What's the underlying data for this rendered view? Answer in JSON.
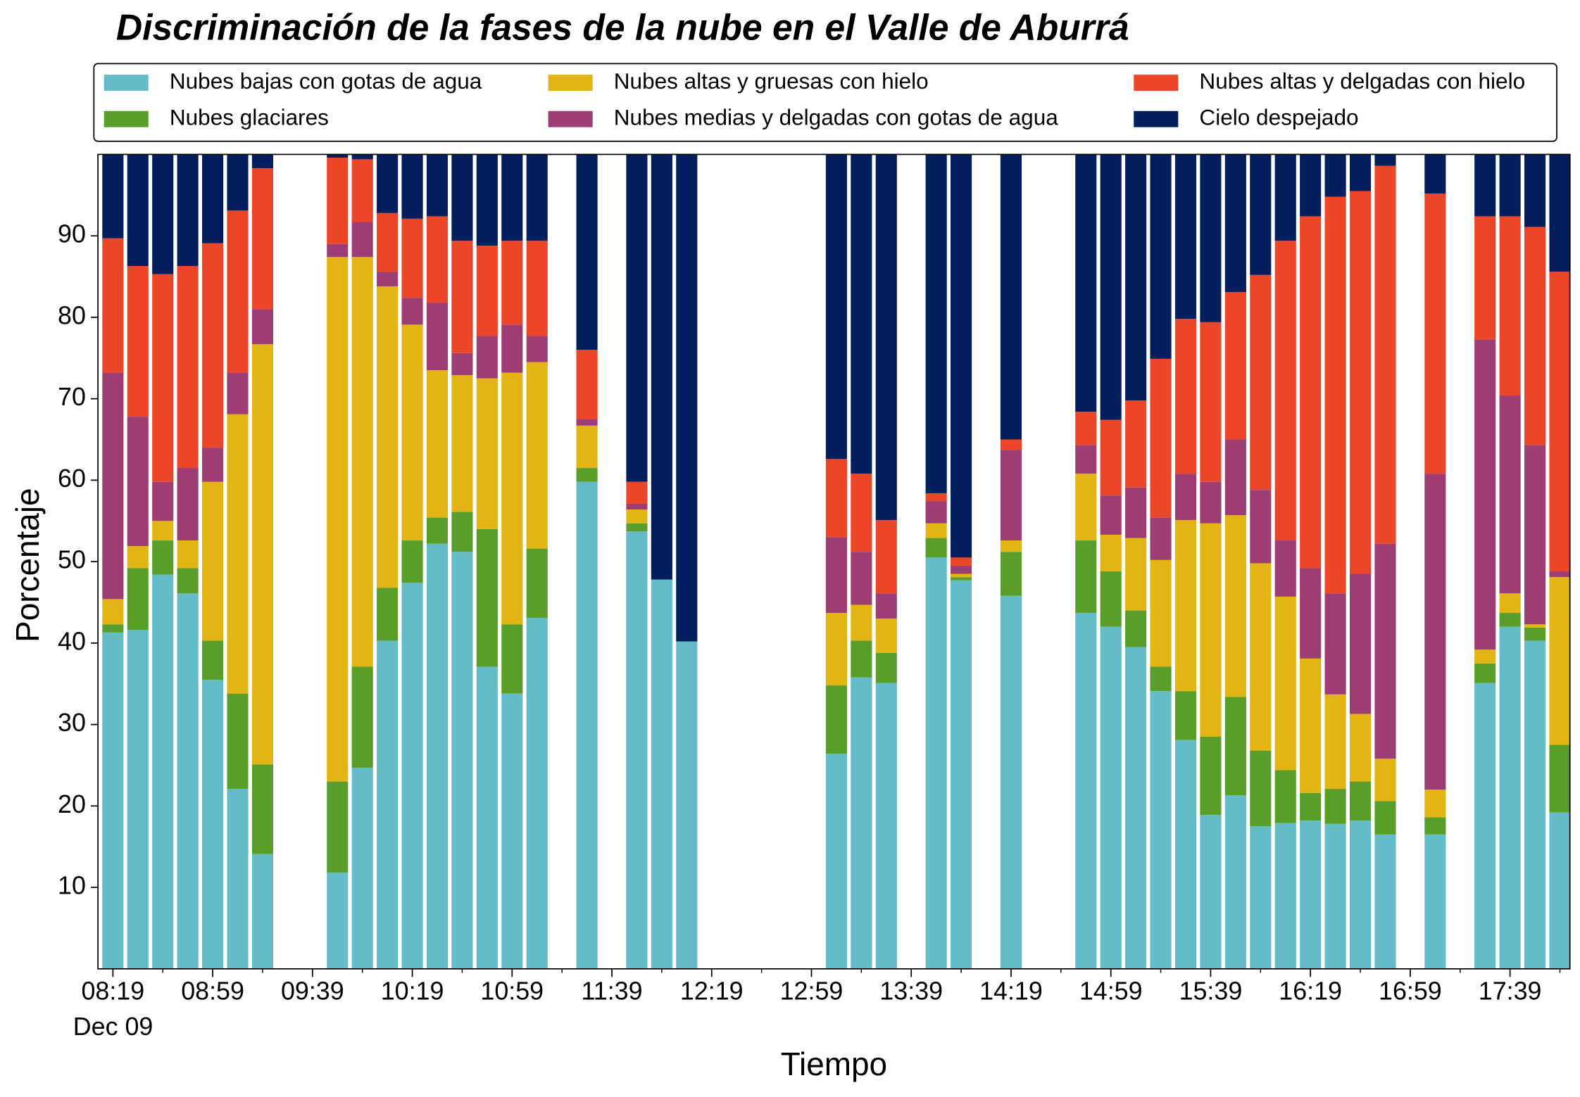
{
  "chart_data": {
    "type": "stacked_bar",
    "title": "Discriminación de la fases de la nube en el Valle de Aburrá",
    "xlabel": "Tiempo",
    "ylabel": "Porcentaje",
    "x_sublabel": "Dec 09",
    "x": [
      "08:19",
      "08:29",
      "08:39",
      "08:49",
      "08:59",
      "09:09",
      "09:19",
      "09:49",
      "09:59",
      "10:09",
      "10:19",
      "10:29",
      "10:39",
      "10:49",
      "10:59",
      "11:09",
      "11:29",
      "11:49",
      "11:59",
      "12:09",
      "13:09",
      "13:19",
      "13:29",
      "13:49",
      "13:59",
      "14:19",
      "14:49",
      "14:59",
      "15:09",
      "15:19",
      "15:29",
      "15:39",
      "15:49",
      "15:59",
      "16:09",
      "16:19",
      "16:29",
      "16:39",
      "16:49",
      "17:09",
      "17:29",
      "17:39",
      "17:49",
      "17:59"
    ],
    "xlim": [
      "08:13",
      "18:03"
    ],
    "xticks": [
      "08:19",
      "08:59",
      "09:39",
      "10:19",
      "10:59",
      "11:39",
      "12:19",
      "12:59",
      "13:39",
      "14:19",
      "14:59",
      "15:39",
      "16:19",
      "16:59",
      "17:39"
    ],
    "xticks_minor": [
      "08:39",
      "09:19",
      "09:59",
      "10:39",
      "11:19",
      "11:59",
      "12:39",
      "13:19",
      "13:59",
      "14:39",
      "15:19",
      "15:59",
      "16:39",
      "17:19",
      "17:59"
    ],
    "ylim": [
      0,
      100
    ],
    "yticks": [
      10,
      20,
      30,
      40,
      50,
      60,
      70,
      80,
      90
    ],
    "legend": "top",
    "series": [
      {
        "name": "Nubes bajas con gotas de agua",
        "color": "#65bcc9",
        "values": [
          41.3,
          41.6,
          48.4,
          46.1,
          35.5,
          22.1,
          14.1,
          11.8,
          24.7,
          40.3,
          47.4,
          52.2,
          51.2,
          37.1,
          33.8,
          43.1,
          59.8,
          53.7,
          47.8,
          40.2,
          26.4,
          35.8,
          35.1,
          50.5,
          47.7,
          45.8,
          43.7,
          42.0,
          39.5,
          34.1,
          28.1,
          18.9,
          21.3,
          17.5,
          17.9,
          18.2,
          17.8,
          18.2,
          16.5,
          16.5,
          35.1,
          42.0,
          40.3,
          19.2
        ]
      },
      {
        "name": "Nubes glaciares",
        "color": "#5a9e2a",
        "values": [
          1.0,
          7.6,
          4.2,
          3.1,
          4.8,
          11.7,
          11.0,
          11.2,
          12.4,
          6.5,
          5.2,
          3.2,
          4.9,
          16.9,
          8.5,
          8.5,
          1.7,
          1.0,
          0,
          0,
          8.4,
          4.5,
          3.7,
          2.4,
          0.4,
          5.4,
          8.9,
          6.8,
          4.5,
          3.0,
          6.0,
          9.6,
          12.1,
          9.3,
          6.5,
          3.4,
          4.3,
          4.8,
          4.1,
          2.1,
          2.4,
          1.7,
          1.6,
          8.3
        ]
      },
      {
        "name": "Nubes altas y gruesas con hielo",
        "color": "#e2b514",
        "values": [
          3.1,
          2.7,
          2.4,
          3.4,
          19.5,
          34.3,
          51.6,
          64.4,
          50.3,
          37.0,
          26.5,
          18.1,
          16.8,
          18.5,
          30.9,
          22.9,
          5.2,
          1.7,
          0,
          0,
          8.9,
          4.4,
          4.2,
          1.8,
          0.4,
          1.4,
          8.2,
          4.5,
          8.9,
          13.1,
          21.0,
          26.2,
          22.3,
          23.0,
          21.3,
          16.5,
          11.6,
          8.3,
          5.2,
          3.4,
          1.7,
          2.4,
          0.4,
          20.6
        ]
      },
      {
        "name": "Nubes medias y delgadas con gotas de agua",
        "color": "#9d3d73",
        "values": [
          27.8,
          15.9,
          4.8,
          8.9,
          4.2,
          5.1,
          4.3,
          1.6,
          4.3,
          1.8,
          3.3,
          8.3,
          2.7,
          5.2,
          5.9,
          3.2,
          0.8,
          0.7,
          0,
          0,
          9.3,
          6.5,
          3.1,
          2.7,
          1.0,
          11.1,
          3.5,
          4.8,
          6.2,
          5.2,
          5.7,
          5.1,
          9.3,
          9.0,
          6.9,
          11.1,
          12.4,
          17.2,
          26.4,
          38.8,
          38.1,
          24.3,
          22.0,
          0.7
        ]
      },
      {
        "name": "Nubes altas y delgadas con hielo",
        "color": "#ec4628",
        "values": [
          16.5,
          18.5,
          25.5,
          24.8,
          25.1,
          19.9,
          17.3,
          10.6,
          7.7,
          7.2,
          9.7,
          10.6,
          13.8,
          11.1,
          10.3,
          11.7,
          8.5,
          2.7,
          0,
          0,
          9.6,
          9.6,
          9.0,
          1.0,
          1.0,
          1.3,
          4.1,
          9.3,
          10.7,
          19.5,
          19.0,
          19.6,
          18.1,
          26.4,
          36.8,
          43.2,
          48.7,
          47.0,
          46.4,
          34.4,
          15.1,
          22.0,
          26.8,
          36.8
        ]
      },
      {
        "name": "Cielo despejado",
        "color": "#031e5c",
        "values": [
          10.3,
          13.7,
          14.7,
          13.7,
          10.9,
          6.9,
          1.7,
          0.4,
          0.6,
          7.2,
          7.9,
          7.6,
          10.6,
          11.2,
          10.6,
          10.6,
          24.0,
          40.2,
          52.2,
          59.8,
          37.4,
          39.2,
          44.9,
          41.6,
          49.5,
          35.0,
          31.6,
          32.6,
          30.2,
          25.1,
          20.2,
          20.6,
          16.9,
          14.8,
          10.6,
          7.6,
          5.2,
          4.5,
          1.4,
          4.8,
          7.6,
          7.6,
          8.9,
          14.4
        ]
      }
    ]
  }
}
